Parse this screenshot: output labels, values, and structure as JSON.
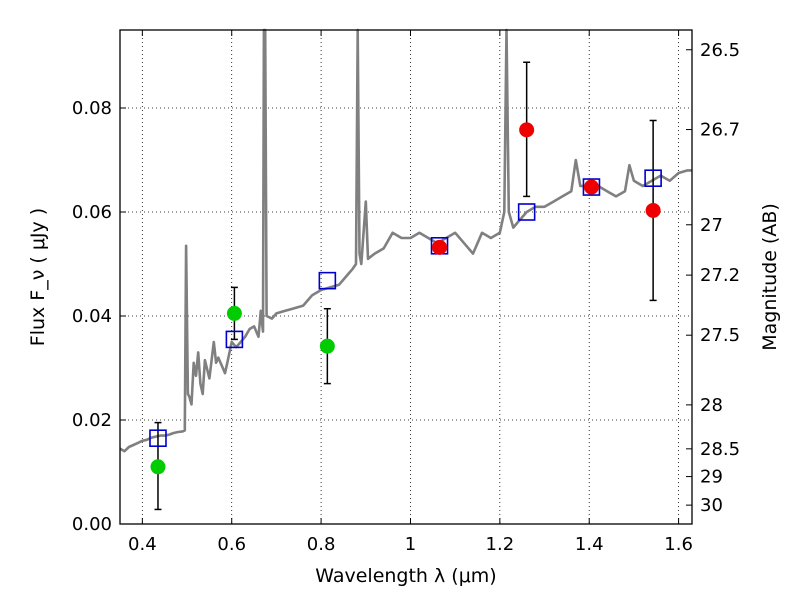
{
  "chart_data": {
    "type": "scatter",
    "xlabel": "Wavelength  λ (μm)",
    "ylabel": "Flux  F_ν  ( μJy )",
    "ylabel_right": "Magnitude (AB)",
    "xlim": [
      0.35,
      1.63
    ],
    "ylim": [
      0.0,
      0.095
    ],
    "grid": true,
    "x_ticks": [
      0.4,
      0.6,
      0.8,
      1.0,
      1.2,
      1.4,
      1.6
    ],
    "x_tick_labels": [
      "0.4",
      "0.6",
      "0.8",
      "1",
      "1.2",
      "1.4",
      "1.6"
    ],
    "y_ticks": [
      0.0,
      0.02,
      0.04,
      0.06,
      0.08
    ],
    "y_tick_labels": [
      "0.00",
      "0.02",
      "0.04",
      "0.06",
      "0.08"
    ],
    "right_axis_ticks": [
      {
        "label": "26.5",
        "mag": 26.5
      },
      {
        "label": "26.7",
        "mag": 26.7
      },
      {
        "label": "27",
        "mag": 27.0
      },
      {
        "label": "27.2",
        "mag": 27.2
      },
      {
        "label": "27.5",
        "mag": 27.5
      },
      {
        "label": "28",
        "mag": 28.0
      },
      {
        "label": "28.5",
        "mag": 28.5
      },
      {
        "label": "29",
        "mag": 29.0
      },
      {
        "label": "30",
        "mag": 30.0
      }
    ],
    "series": [
      {
        "kind": "model_spectrum",
        "color": "#808080",
        "points": [
          [
            0.35,
            0.0145
          ],
          [
            0.36,
            0.014
          ],
          [
            0.37,
            0.0148
          ],
          [
            0.38,
            0.0152
          ],
          [
            0.39,
            0.0156
          ],
          [
            0.4,
            0.016
          ],
          [
            0.41,
            0.0162
          ],
          [
            0.42,
            0.0166
          ],
          [
            0.43,
            0.0168
          ],
          [
            0.44,
            0.017
          ],
          [
            0.45,
            0.017
          ],
          [
            0.46,
            0.0172
          ],
          [
            0.47,
            0.0175
          ],
          [
            0.48,
            0.0177
          ],
          [
            0.49,
            0.0178
          ],
          [
            0.495,
            0.018
          ],
          [
            0.498,
            0.0535
          ],
          [
            0.502,
            0.025
          ],
          [
            0.505,
            0.0245
          ],
          [
            0.51,
            0.023
          ],
          [
            0.515,
            0.031
          ],
          [
            0.52,
            0.0285
          ],
          [
            0.525,
            0.033
          ],
          [
            0.53,
            0.027
          ],
          [
            0.535,
            0.025
          ],
          [
            0.54,
            0.0315
          ],
          [
            0.55,
            0.028
          ],
          [
            0.56,
            0.035
          ],
          [
            0.565,
            0.031
          ],
          [
            0.57,
            0.032
          ],
          [
            0.58,
            0.03
          ],
          [
            0.585,
            0.029
          ],
          [
            0.59,
            0.031
          ],
          [
            0.6,
            0.035
          ],
          [
            0.61,
            0.034
          ],
          [
            0.62,
            0.035
          ],
          [
            0.63,
            0.036
          ],
          [
            0.64,
            0.0375
          ],
          [
            0.65,
            0.038
          ],
          [
            0.66,
            0.036
          ],
          [
            0.665,
            0.041
          ],
          [
            0.67,
            0.037
          ],
          [
            0.672,
            0.095
          ],
          [
            0.675,
            0.095
          ],
          [
            0.678,
            0.04
          ],
          [
            0.69,
            0.0395
          ],
          [
            0.7,
            0.0405
          ],
          [
            0.72,
            0.041
          ],
          [
            0.74,
            0.0415
          ],
          [
            0.76,
            0.042
          ],
          [
            0.78,
            0.044
          ],
          [
            0.8,
            0.045
          ],
          [
            0.82,
            0.0455
          ],
          [
            0.84,
            0.046
          ],
          [
            0.86,
            0.048
          ],
          [
            0.87,
            0.049
          ],
          [
            0.878,
            0.05
          ],
          [
            0.882,
            0.095
          ],
          [
            0.886,
            0.052
          ],
          [
            0.89,
            0.05
          ],
          [
            0.9,
            0.062
          ],
          [
            0.905,
            0.051
          ],
          [
            0.92,
            0.052
          ],
          [
            0.94,
            0.053
          ],
          [
            0.96,
            0.056
          ],
          [
            0.98,
            0.055
          ],
          [
            1.0,
            0.055
          ],
          [
            1.02,
            0.056
          ],
          [
            1.04,
            0.055
          ],
          [
            1.06,
            0.054
          ],
          [
            1.08,
            0.055
          ],
          [
            1.1,
            0.056
          ],
          [
            1.12,
            0.054
          ],
          [
            1.14,
            0.052
          ],
          [
            1.16,
            0.056
          ],
          [
            1.18,
            0.055
          ],
          [
            1.2,
            0.056
          ],
          [
            1.21,
            0.06
          ],
          [
            1.215,
            0.095
          ],
          [
            1.22,
            0.06
          ],
          [
            1.23,
            0.057
          ],
          [
            1.24,
            0.058
          ],
          [
            1.26,
            0.06
          ],
          [
            1.28,
            0.061
          ],
          [
            1.3,
            0.061
          ],
          [
            1.32,
            0.062
          ],
          [
            1.34,
            0.063
          ],
          [
            1.36,
            0.064
          ],
          [
            1.37,
            0.07
          ],
          [
            1.38,
            0.065
          ],
          [
            1.4,
            0.065
          ],
          [
            1.42,
            0.065
          ],
          [
            1.44,
            0.064
          ],
          [
            1.46,
            0.063
          ],
          [
            1.48,
            0.064
          ],
          [
            1.49,
            0.069
          ],
          [
            1.5,
            0.066
          ],
          [
            1.52,
            0.065
          ],
          [
            1.54,
            0.066
          ],
          [
            1.56,
            0.067
          ],
          [
            1.58,
            0.066
          ],
          [
            1.6,
            0.0675
          ],
          [
            1.62,
            0.068
          ],
          [
            1.63,
            0.068
          ]
        ]
      },
      {
        "kind": "model_photometry",
        "marker": "open-square",
        "color": "#0000cc",
        "points": [
          {
            "x": 0.435,
            "y": 0.0165
          },
          {
            "x": 0.606,
            "y": 0.0355
          },
          {
            "x": 0.814,
            "y": 0.0468
          },
          {
            "x": 1.065,
            "y": 0.0535
          },
          {
            "x": 1.26,
            "y": 0.06
          },
          {
            "x": 1.405,
            "y": 0.0648
          },
          {
            "x": 1.543,
            "y": 0.0665
          }
        ]
      },
      {
        "kind": "observed_photometry",
        "marker": "filled-circle",
        "color": "#00cc00",
        "points": [
          {
            "x": 0.435,
            "y": 0.011,
            "err_low": 0.0082,
            "err_high": 0.0085
          },
          {
            "x": 0.606,
            "y": 0.0405,
            "err_low": 0.005,
            "err_high": 0.005
          },
          {
            "x": 0.814,
            "y": 0.0342,
            "err_low": 0.0072,
            "err_high": 0.0072
          }
        ]
      },
      {
        "kind": "observed_photometry",
        "marker": "filled-circle",
        "color": "#ee0000",
        "points": [
          {
            "x": 1.065,
            "y": 0.0532,
            "err_low": 0.0,
            "err_high": 0.0
          },
          {
            "x": 1.26,
            "y": 0.0758,
            "err_low": 0.0128,
            "err_high": 0.013
          },
          {
            "x": 1.405,
            "y": 0.0648,
            "err_low": 0.0,
            "err_high": 0.0
          },
          {
            "x": 1.543,
            "y": 0.0603,
            "err_low": 0.0173,
            "err_high": 0.0173
          }
        ]
      }
    ]
  }
}
